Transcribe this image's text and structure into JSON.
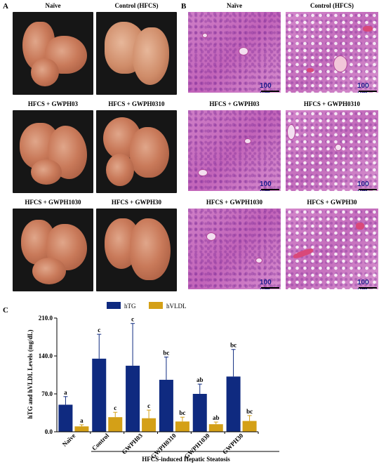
{
  "panels": {
    "a": {
      "letter": "A"
    },
    "b": {
      "letter": "B"
    },
    "c": {
      "letter": "C"
    }
  },
  "groups": [
    "Naïve",
    "Control (HFCS)",
    "HFCS + GWPH03",
    "HFCS + GWPH0310",
    "HFCS + GWPH1030",
    "HFCS + GWPH30"
  ],
  "scale_bar_label": "100 μm",
  "colors": {
    "hTG": "#0f2a80",
    "hVLDL": "#d4a017",
    "photo_bg": "#141414"
  },
  "chart_data": {
    "type": "bar",
    "categories": [
      "Naïve",
      "Control",
      "GWPH03",
      "GWPH0310",
      "GWPH1030",
      "GWPH30"
    ],
    "series": [
      {
        "name": "hTG",
        "values": [
          50,
          135,
          122,
          96,
          70,
          102
        ],
        "errors": [
          15,
          45,
          78,
          42,
          18,
          50
        ],
        "letters": [
          "a",
          "c",
          "c",
          "bc",
          "ab",
          "bc"
        ]
      },
      {
        "name": "hVLDL",
        "values": [
          10,
          27,
          25,
          19,
          14,
          20
        ],
        "errors": [
          3,
          9,
          15,
          8,
          4,
          10
        ],
        "letters": [
          "a",
          "c",
          "c",
          "bc",
          "ab",
          "bc"
        ]
      }
    ],
    "ylabel": "hTG and hVLDL Levels (mg/dL)",
    "xlabel": "HFCS-induced Hepatic Steatosis",
    "yticks": [
      "0.0",
      "70.0",
      "140.0",
      "210.0"
    ],
    "ylim": [
      0,
      210
    ],
    "legend": "top"
  }
}
